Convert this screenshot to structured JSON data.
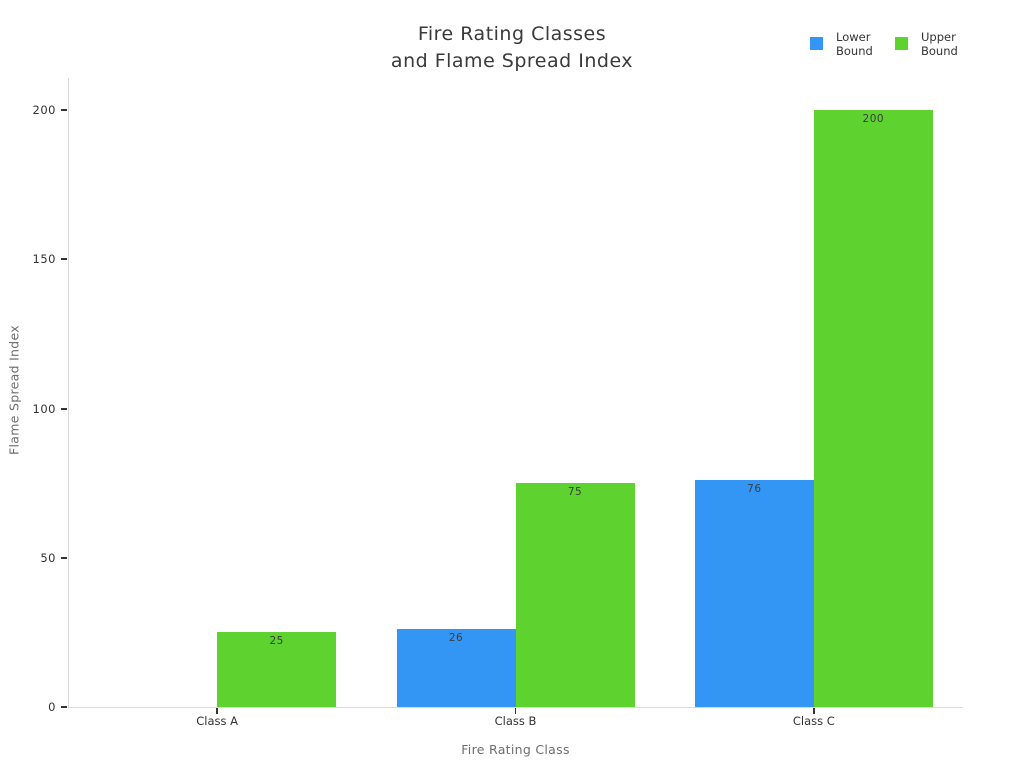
{
  "chart_data": {
    "type": "bar",
    "title": "Fire Rating Classes and Flame Spread Index",
    "title_lines": [
      "Fire Rating Classes",
      "and Flame Spread Index"
    ],
    "xlabel": "Fire Rating Class",
    "ylabel": "Flame Spread Index",
    "categories": [
      "Class A",
      "Class B",
      "Class C"
    ],
    "series": [
      {
        "name": "Lower Bound",
        "color": "#3396f5",
        "values": [
          0,
          26,
          76
        ],
        "labels": [
          "",
          "26",
          "76"
        ]
      },
      {
        "name": "Upper Bound",
        "color": "#5ed22e",
        "values": [
          25,
          75,
          200
        ],
        "labels": [
          "25",
          "75",
          "200"
        ]
      }
    ],
    "ylim": [
      0,
      200
    ],
    "yticks": [
      0,
      50,
      100,
      150,
      200
    ],
    "grid": false,
    "legend_position": "top-right",
    "value_labels_position": "inside-top"
  },
  "colors": {
    "axis_line": "#d9d9d9",
    "tick": "#333333",
    "tick_label": "#333333",
    "axis_title": "#6e6e6e",
    "title": "#3a3a3a",
    "value_label": "#3d3d3d",
    "background": "#ffffff"
  }
}
